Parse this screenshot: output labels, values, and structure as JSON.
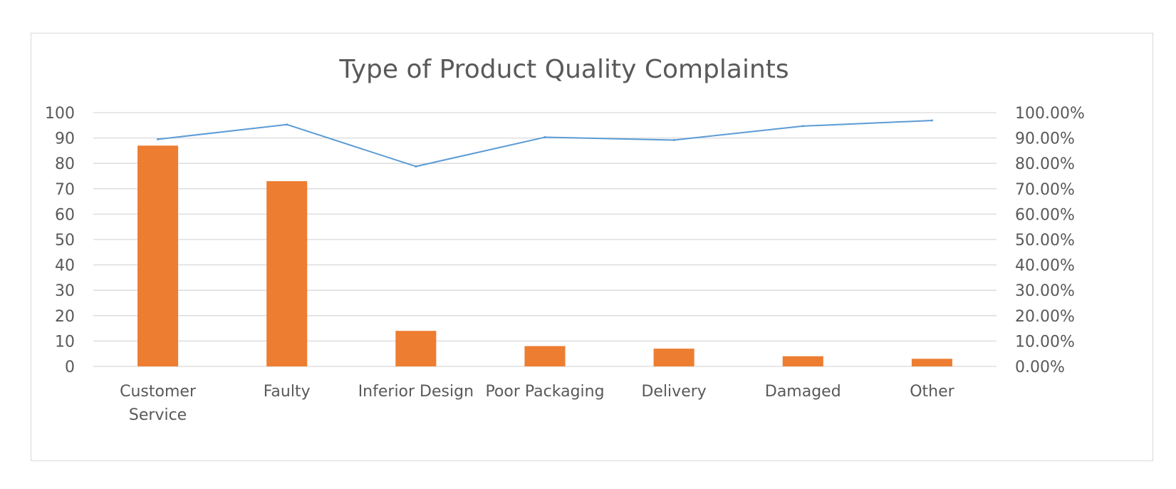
{
  "chart_data": {
    "type": "bar",
    "title": "Type of Product Quality Complaints",
    "categories": [
      "Customer Service",
      "Faulty",
      "Inferior Design",
      "Poor Packaging",
      "Delivery",
      "Damaged",
      "Other"
    ],
    "category_lines": [
      [
        "Customer",
        "Service"
      ],
      [
        "Faulty"
      ],
      [
        "Inferior Design"
      ],
      [
        "Poor Packaging"
      ],
      [
        "Delivery"
      ],
      [
        "Damaged"
      ],
      [
        "Other"
      ]
    ],
    "series": [
      {
        "type": "bar",
        "axis": "primary",
        "color": "#ED7D31",
        "values": [
          87,
          73,
          14,
          8,
          7,
          4,
          3
        ]
      },
      {
        "type": "line",
        "axis": "secondary",
        "color": "#5B9BD5",
        "values": [
          0.895,
          0.953,
          0.788,
          0.903,
          0.892,
          0.947,
          0.969
        ]
      }
    ],
    "y_primary": {
      "min": 0,
      "max": 100,
      "step": 10,
      "tick_labels": [
        "0",
        "10",
        "20",
        "30",
        "40",
        "50",
        "60",
        "70",
        "80",
        "90",
        "100"
      ]
    },
    "y_secondary": {
      "min": 0,
      "max": 1,
      "step": 0.1,
      "tick_labels": [
        "0.00%",
        "10.00%",
        "20.00%",
        "30.00%",
        "40.00%",
        "50.00%",
        "60.00%",
        "70.00%",
        "80.00%",
        "90.00%",
        "100.00%"
      ]
    },
    "grid": true,
    "legend": "none",
    "gridline_color": "#d9d9d9"
  }
}
